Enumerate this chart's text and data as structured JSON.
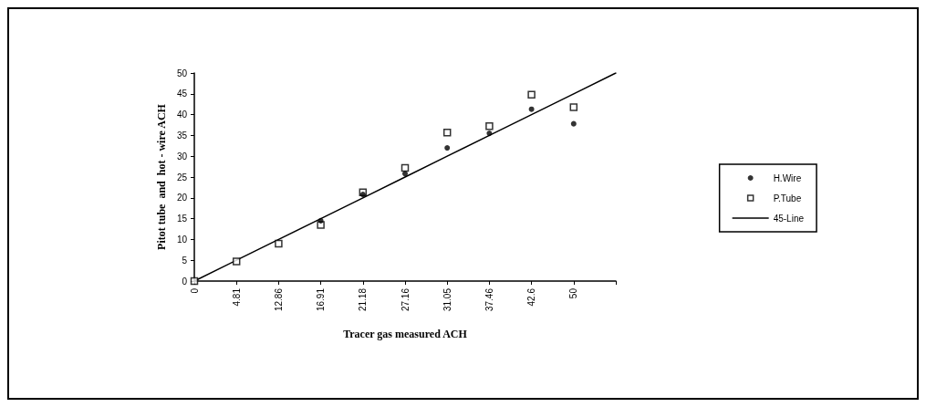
{
  "chart_data": {
    "type": "scatter",
    "xlabel": "Tracer gas measured ACH",
    "ylabel": "Pitot tube  and  hot - wire ACH",
    "categories": [
      "0",
      "4.81",
      "12.86",
      "16.91",
      "21.18",
      "27.16",
      "31.05",
      "37.46",
      "42.6",
      "50",
      null
    ],
    "ylim": [
      0,
      50
    ],
    "yticks": [
      0,
      5,
      10,
      15,
      20,
      25,
      30,
      35,
      40,
      45,
      50
    ],
    "grid": false,
    "legend": "right",
    "series": [
      {
        "name": "H.Wire",
        "color": "#000000",
        "marker": "circle",
        "values": [
          null,
          null,
          null,
          14.5,
          20.8,
          25.8,
          32,
          35.5,
          41.3,
          37.8,
          null
        ]
      },
      {
        "name": "P.Tube",
        "color": "#000000",
        "marker": "square",
        "values": [
          0,
          4.7,
          9,
          13.5,
          21.3,
          27.2,
          35.7,
          37.2,
          44.8,
          41.8,
          null
        ]
      },
      {
        "name": "45-Line",
        "type": "line",
        "color": "#000000",
        "marker": "none",
        "line_style": "solid",
        "values": [
          0,
          5,
          10,
          15,
          20,
          25,
          30,
          35,
          40,
          45,
          50
        ]
      }
    ]
  }
}
